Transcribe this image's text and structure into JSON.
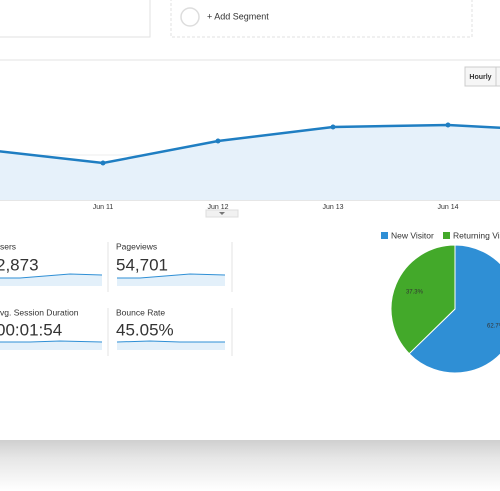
{
  "segments": {
    "add_segment": "+ Add Segment"
  },
  "toolbar": {
    "hourly": "Hourly"
  },
  "chart_data": [
    {
      "type": "line",
      "categories": [
        null,
        "Jun 11",
        "Jun 12",
        "Jun 13",
        "Jun 14",
        null
      ],
      "series": [
        {
          "color": "#1f7ec2",
          "values": [
            50,
            37,
            59,
            73,
            75,
            69
          ]
        }
      ],
      "ylim": [
        0,
        100
      ]
    },
    {
      "type": "pie",
      "categories": [
        "New Visitor",
        "Returning Vis"
      ],
      "values": [
        62.7,
        37.3
      ],
      "value_labels": [
        "62.7%",
        "37.3%"
      ],
      "colors": [
        "#2f8fd5",
        "#43a92a"
      ]
    }
  ],
  "metrics": [
    {
      "label": "sers",
      "value": "2,873"
    },
    {
      "label": "Pageviews",
      "value": "54,701"
    },
    {
      "label": "vg. Session Duration",
      "value": "00:01:54"
    },
    {
      "label": "Bounce Rate",
      "value": "45.05%"
    }
  ]
}
